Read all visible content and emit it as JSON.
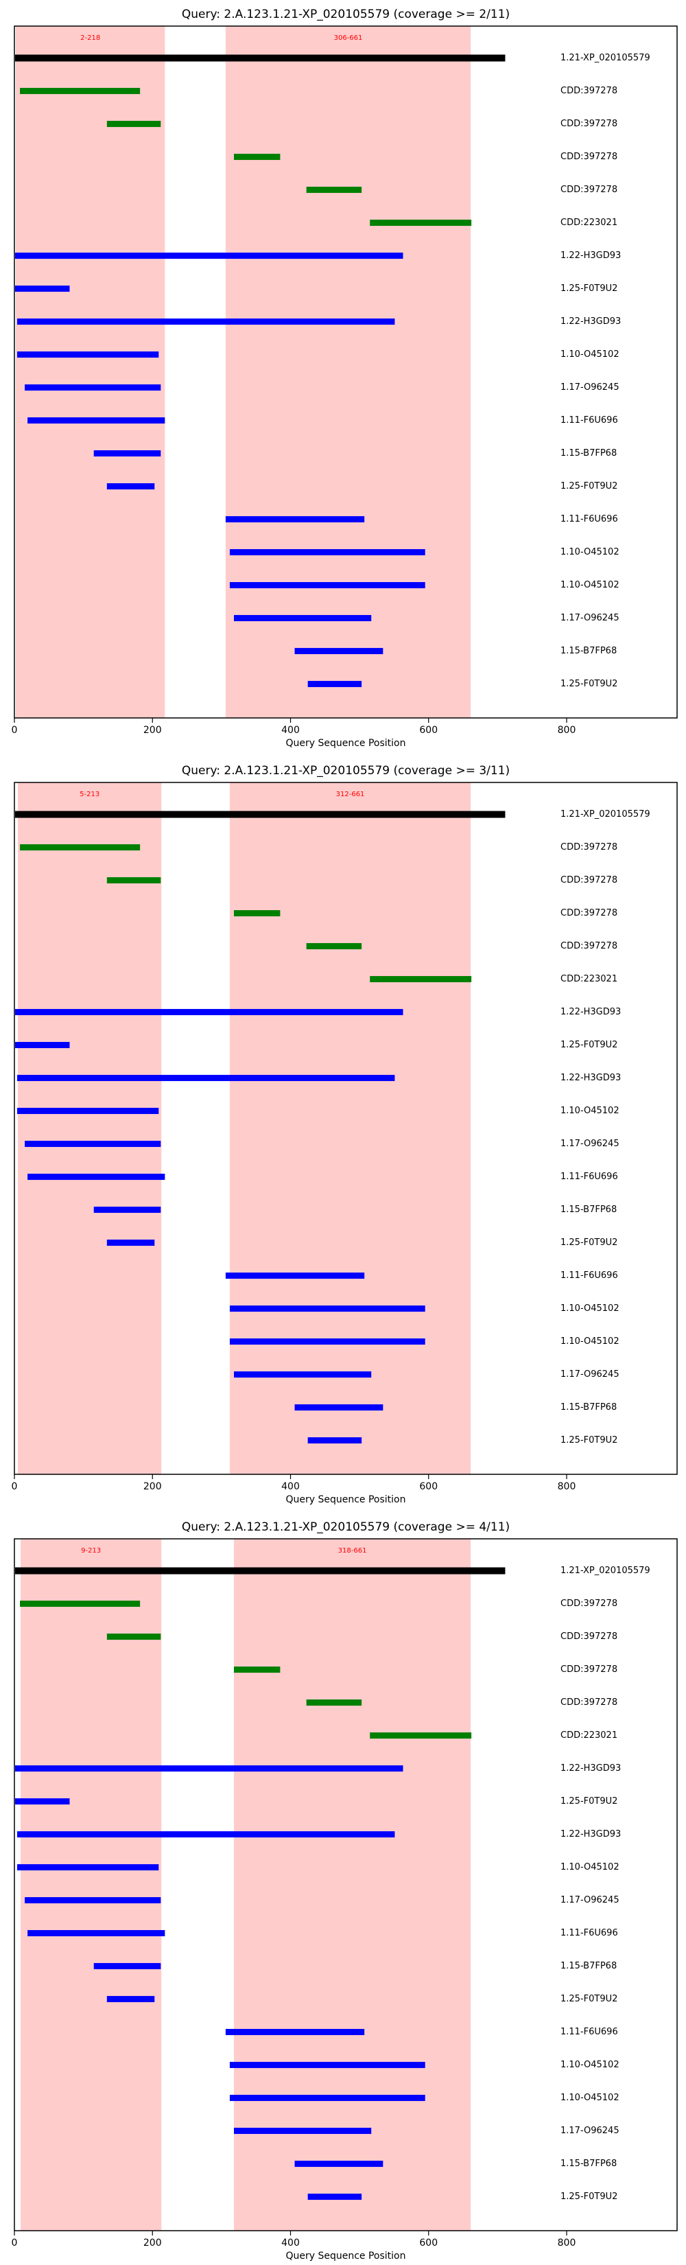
{
  "chart_data": [
    {
      "type": "segments",
      "title": "Query: 2.A.123.1.21-XP_020105579 (coverage >= 2/11)",
      "xlabel": "Query Sequence Position",
      "xlim": [
        0,
        960
      ],
      "xticks": [
        0,
        200,
        400,
        600,
        800
      ],
      "regions": [
        {
          "start": 2,
          "end": 218,
          "label": "2-218"
        },
        {
          "start": 306,
          "end": 661,
          "label": "306-661"
        }
      ],
      "region_color": "#ffcccc",
      "region_label_color": "#ff0000",
      "categories": [
        "1.21-XP_020105579",
        "CDD:397278",
        "CDD:397278",
        "CDD:397278",
        "CDD:397278",
        "CDD:223021",
        "1.22-H3GD93",
        "1.25-F0T9U2",
        "1.22-H3GD93",
        "1.10-O45102",
        "1.17-O96245",
        "1.11-F6U696",
        "1.15-B7FP68",
        "1.25-F0T9U2",
        "1.11-F6U696",
        "1.10-O45102",
        "1.10-O45102",
        "1.17-O96245",
        "1.15-B7FP68",
        "1.25-F0T9U2"
      ],
      "starts": [
        1,
        8,
        134,
        318,
        423,
        515,
        1,
        1,
        4,
        4,
        15,
        19,
        115,
        134,
        306,
        312,
        312,
        318,
        406,
        425
      ],
      "ends": [
        711,
        182,
        212,
        385,
        503,
        662,
        563,
        80,
        551,
        209,
        212,
        218,
        212,
        203,
        507,
        595,
        595,
        517,
        534,
        503
      ],
      "colors": [
        "#000000",
        "#008000",
        "#008000",
        "#008000",
        "#008000",
        "#008000",
        "#0000ff",
        "#0000ff",
        "#0000ff",
        "#0000ff",
        "#0000ff",
        "#0000ff",
        "#0000ff",
        "#0000ff",
        "#0000ff",
        "#0000ff",
        "#0000ff",
        "#0000ff",
        "#0000ff",
        "#0000ff"
      ]
    },
    {
      "type": "segments",
      "title": "Query: 2.A.123.1.21-XP_020105579 (coverage >= 3/11)",
      "xlabel": "Query Sequence Position",
      "xlim": [
        0,
        960
      ],
      "xticks": [
        0,
        200,
        400,
        600,
        800
      ],
      "regions": [
        {
          "start": 5,
          "end": 213,
          "label": "5-213"
        },
        {
          "start": 312,
          "end": 661,
          "label": "312-661"
        }
      ],
      "region_color": "#ffcccc",
      "region_label_color": "#ff0000",
      "categories": [
        "1.21-XP_020105579",
        "CDD:397278",
        "CDD:397278",
        "CDD:397278",
        "CDD:397278",
        "CDD:223021",
        "1.22-H3GD93",
        "1.25-F0T9U2",
        "1.22-H3GD93",
        "1.10-O45102",
        "1.17-O96245",
        "1.11-F6U696",
        "1.15-B7FP68",
        "1.25-F0T9U2",
        "1.11-F6U696",
        "1.10-O45102",
        "1.10-O45102",
        "1.17-O96245",
        "1.15-B7FP68",
        "1.25-F0T9U2"
      ],
      "starts": [
        1,
        8,
        134,
        318,
        423,
        515,
        1,
        1,
        4,
        4,
        15,
        19,
        115,
        134,
        306,
        312,
        312,
        318,
        406,
        425
      ],
      "ends": [
        711,
        182,
        212,
        385,
        503,
        662,
        563,
        80,
        551,
        209,
        212,
        218,
        212,
        203,
        507,
        595,
        595,
        517,
        534,
        503
      ],
      "colors": [
        "#000000",
        "#008000",
        "#008000",
        "#008000",
        "#008000",
        "#008000",
        "#0000ff",
        "#0000ff",
        "#0000ff",
        "#0000ff",
        "#0000ff",
        "#0000ff",
        "#0000ff",
        "#0000ff",
        "#0000ff",
        "#0000ff",
        "#0000ff",
        "#0000ff",
        "#0000ff",
        "#0000ff"
      ]
    },
    {
      "type": "segments",
      "title": "Query: 2.A.123.1.21-XP_020105579 (coverage >= 4/11)",
      "xlabel": "Query Sequence Position",
      "xlim": [
        0,
        960
      ],
      "xticks": [
        0,
        200,
        400,
        600,
        800
      ],
      "regions": [
        {
          "start": 9,
          "end": 213,
          "label": "9-213"
        },
        {
          "start": 318,
          "end": 661,
          "label": "318-661"
        }
      ],
      "region_color": "#ffcccc",
      "region_label_color": "#ff0000",
      "categories": [
        "1.21-XP_020105579",
        "CDD:397278",
        "CDD:397278",
        "CDD:397278",
        "CDD:397278",
        "CDD:223021",
        "1.22-H3GD93",
        "1.25-F0T9U2",
        "1.22-H3GD93",
        "1.10-O45102",
        "1.17-O96245",
        "1.11-F6U696",
        "1.15-B7FP68",
        "1.25-F0T9U2",
        "1.11-F6U696",
        "1.10-O45102",
        "1.10-O45102",
        "1.17-O96245",
        "1.15-B7FP68",
        "1.25-F0T9U2"
      ],
      "starts": [
        1,
        8,
        134,
        318,
        423,
        515,
        1,
        1,
        4,
        4,
        15,
        19,
        115,
        134,
        306,
        312,
        312,
        318,
        406,
        425
      ],
      "ends": [
        711,
        182,
        212,
        385,
        503,
        662,
        563,
        80,
        551,
        209,
        212,
        218,
        212,
        203,
        507,
        595,
        595,
        517,
        534,
        503
      ],
      "colors": [
        "#000000",
        "#008000",
        "#008000",
        "#008000",
        "#008000",
        "#008000",
        "#0000ff",
        "#0000ff",
        "#0000ff",
        "#0000ff",
        "#0000ff",
        "#0000ff",
        "#0000ff",
        "#0000ff",
        "#0000ff",
        "#0000ff",
        "#0000ff",
        "#0000ff",
        "#0000ff",
        "#0000ff"
      ]
    }
  ]
}
